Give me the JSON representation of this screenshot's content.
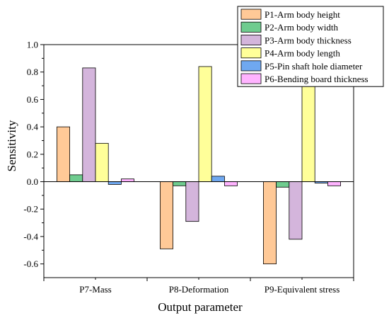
{
  "chart_data": {
    "type": "bar",
    "title": "",
    "xlabel": "Output parameter",
    "ylabel": "Sensitivity",
    "ylim": [
      -0.7,
      1.0
    ],
    "yticks": [
      -0.6,
      -0.4,
      -0.2,
      0.0,
      0.2,
      0.4,
      0.6,
      0.8,
      1.0
    ],
    "ytick_labels": [
      "-0.6",
      "-0.4",
      "-0.2",
      "0.0",
      "0.2",
      "0.4",
      "0.6",
      "0.8",
      "1.0"
    ],
    "grid": false,
    "legend_position": "top-right",
    "categories": [
      "P7-Mass",
      "P8-Deformation",
      "P9-Equivalent stress"
    ],
    "series": [
      {
        "name": "P1-Arm body height",
        "color": "#ffc997",
        "values": [
          0.4,
          -0.49,
          -0.6
        ]
      },
      {
        "name": "P2-Arm body width",
        "color": "#6fcc8f",
        "values": [
          0.05,
          -0.03,
          -0.04
        ]
      },
      {
        "name": "P3-Arm body thickness",
        "color": "#d4b5dc",
        "values": [
          0.83,
          -0.29,
          -0.42
        ]
      },
      {
        "name": "P4-Arm body length",
        "color": "#ffff99",
        "values": [
          0.28,
          0.84,
          0.7
        ]
      },
      {
        "name": "P5-Pin shaft hole diameter",
        "color": "#6fa8f0",
        "values": [
          -0.02,
          0.04,
          -0.01
        ]
      },
      {
        "name": "P6-Bending board thickness",
        "color": "#ffb3ff",
        "values": [
          0.02,
          -0.03,
          -0.03
        ]
      }
    ]
  }
}
